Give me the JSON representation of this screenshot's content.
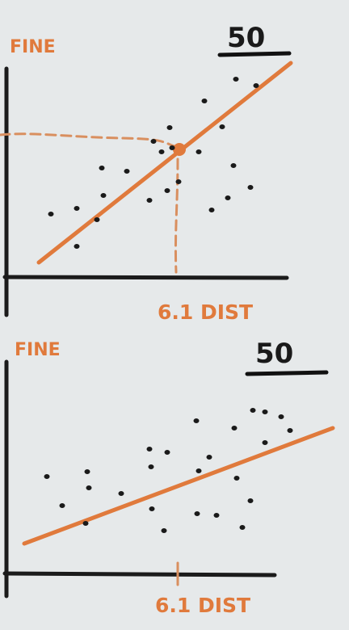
{
  "panels": [
    {
      "y_label": "FINE",
      "sample_size": "50",
      "x_tick_label": "6.1 DIST",
      "points": [
        [
          95,
          305
        ],
        [
          63,
          265
        ],
        [
          95,
          258
        ],
        [
          120,
          272
        ],
        [
          128,
          242
        ],
        [
          126,
          208
        ],
        [
          157,
          212
        ],
        [
          185,
          248
        ],
        [
          207,
          236
        ],
        [
          190,
          175
        ],
        [
          210,
          158
        ],
        [
          200,
          188
        ],
        [
          213,
          183
        ],
        [
          221,
          225
        ],
        [
          246,
          188
        ],
        [
          253,
          125
        ],
        [
          275,
          157
        ],
        [
          289,
          205
        ],
        [
          282,
          245
        ],
        [
          262,
          260
        ],
        [
          310,
          232
        ],
        [
          292,
          98
        ],
        [
          317,
          106
        ]
      ],
      "trend_line": {
        "start": [
          48,
          325
        ],
        "end": [
          360,
          78
        ]
      },
      "highlight_point": [
        222,
        185
      ],
      "guide_y": 167,
      "guide_x": 218
    },
    {
      "y_label": "FINE",
      "sample_size": "50",
      "x_tick_label": "6.1 DIST",
      "points": [
        [
          58,
          590
        ],
        [
          77,
          626
        ],
        [
          108,
          584
        ],
        [
          106,
          648
        ],
        [
          110,
          604
        ],
        [
          150,
          611
        ],
        [
          185,
          556
        ],
        [
          187,
          578
        ],
        [
          188,
          630
        ],
        [
          207,
          560
        ],
        [
          203,
          657
        ],
        [
          243,
          521
        ],
        [
          246,
          583
        ],
        [
          259,
          566
        ],
        [
          244,
          636
        ],
        [
          268,
          638
        ],
        [
          290,
          530
        ],
        [
          293,
          592
        ],
        [
          310,
          620
        ],
        [
          313,
          508
        ],
        [
          328,
          510
        ],
        [
          348,
          516
        ],
        [
          328,
          548
        ],
        [
          359,
          533
        ],
        [
          300,
          653
        ]
      ],
      "trend_line": {
        "start": [
          30,
          673
        ],
        "end": [
          412,
          530
        ]
      }
    }
  ]
}
